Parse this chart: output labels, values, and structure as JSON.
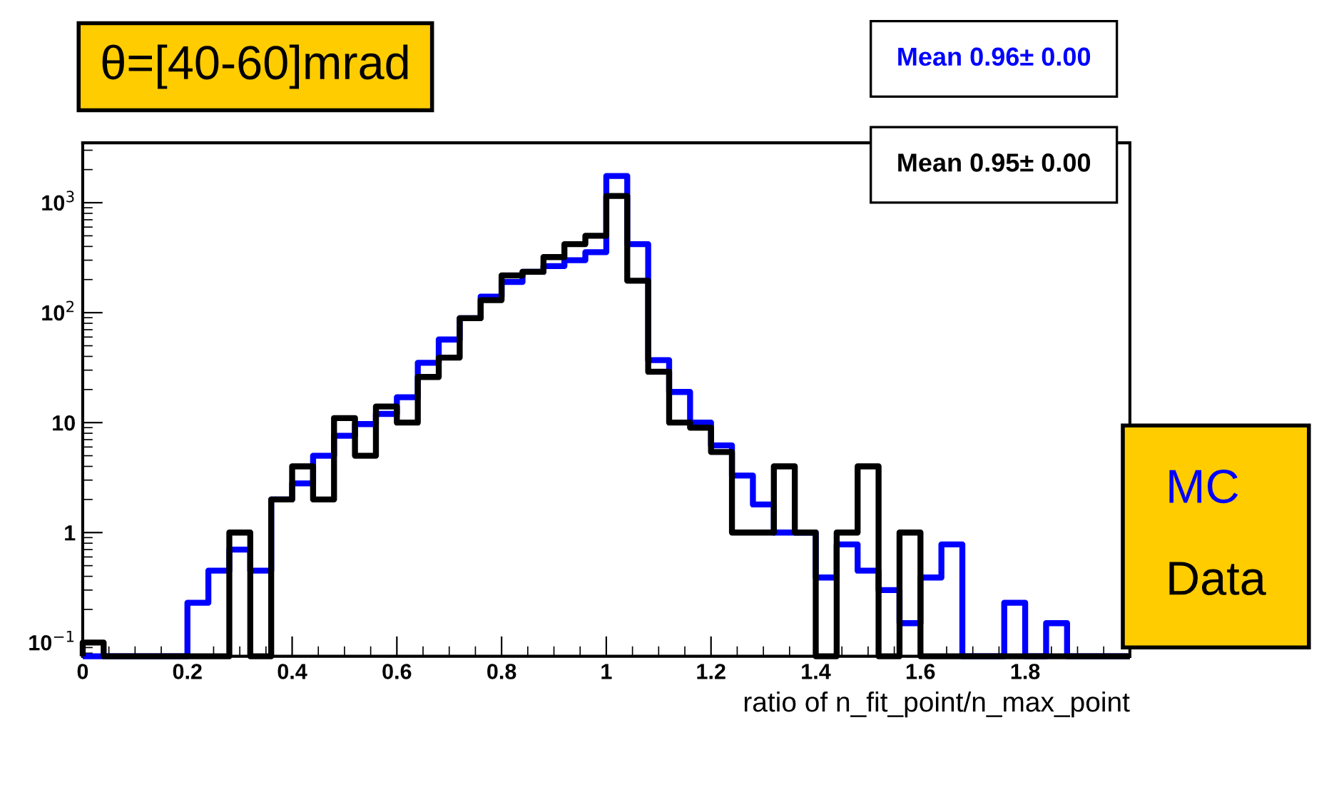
{
  "chart_data": {
    "type": "histogram",
    "title": "θ=[40-60]mrad",
    "xlabel": "ratio of n_fit_point/n_max_point",
    "bins": [
      0,
      0.04,
      0.08,
      0.12,
      0.16,
      0.2,
      0.24,
      0.28,
      0.32,
      0.36,
      0.4,
      0.44,
      0.48,
      0.52,
      0.56,
      0.6,
      0.64,
      0.68,
      0.72,
      0.76,
      0.8,
      0.84,
      0.88,
      0.92,
      0.96,
      1,
      1.04,
      1.08,
      1.12,
      1.16,
      1.2,
      1.24,
      1.28,
      1.32,
      1.36,
      1.4,
      1.44,
      1.48,
      1.52,
      1.56,
      1.6,
      1.64,
      1.68,
      1.72,
      1.76,
      1.8,
      1.84,
      1.88,
      1.92,
      1.96,
      2
    ],
    "series": [
      {
        "name": "MC",
        "color": "#0000ff",
        "values": [
          null,
          null,
          null,
          null,
          null,
          0.23,
          0.45,
          0.7,
          0.45,
          2,
          2.8,
          5,
          7.6,
          9.7,
          12,
          17,
          35,
          57,
          89,
          140,
          190,
          235,
          265,
          300,
          355,
          1750,
          420,
          37,
          19,
          10,
          6.2,
          3.3,
          1.8,
          1,
          1,
          0.39,
          0.78,
          0.45,
          0.3,
          0.15,
          0.39,
          0.78,
          null,
          null,
          0.23,
          null,
          0.15,
          null,
          null,
          null
        ]
      },
      {
        "name": "Data",
        "color": "#000000",
        "values": [
          0.1,
          null,
          null,
          null,
          null,
          null,
          null,
          1,
          null,
          2,
          4,
          2,
          11,
          5,
          14,
          10,
          26,
          39,
          89,
          130,
          218,
          235,
          320,
          420,
          500,
          1150,
          195,
          29,
          10,
          9,
          5.4,
          1,
          1,
          4,
          1,
          null,
          1,
          4,
          null,
          1,
          null,
          null,
          null,
          null,
          null,
          null,
          null,
          null,
          null,
          null
        ]
      }
    ],
    "xlim": [
      0,
      2
    ],
    "xticks": [
      0,
      0.2,
      0.4,
      0.6,
      0.8,
      1,
      1.2,
      1.4,
      1.6,
      1.8
    ],
    "ylim": [
      0.075,
      3500
    ],
    "log": true,
    "yticks": [
      {
        "value": 0.1,
        "label": "10$^{−1}$"
      },
      1,
      10,
      {
        "value": 100,
        "label": "10$^{2}$"
      },
      {
        "value": 1000,
        "label": "10$^{3}$"
      }
    ],
    "annotations": [
      "Mean 0.96± 0.00",
      "Mean 0.95± 0.00"
    ],
    "legend": "bottom right",
    "grid": false
  }
}
